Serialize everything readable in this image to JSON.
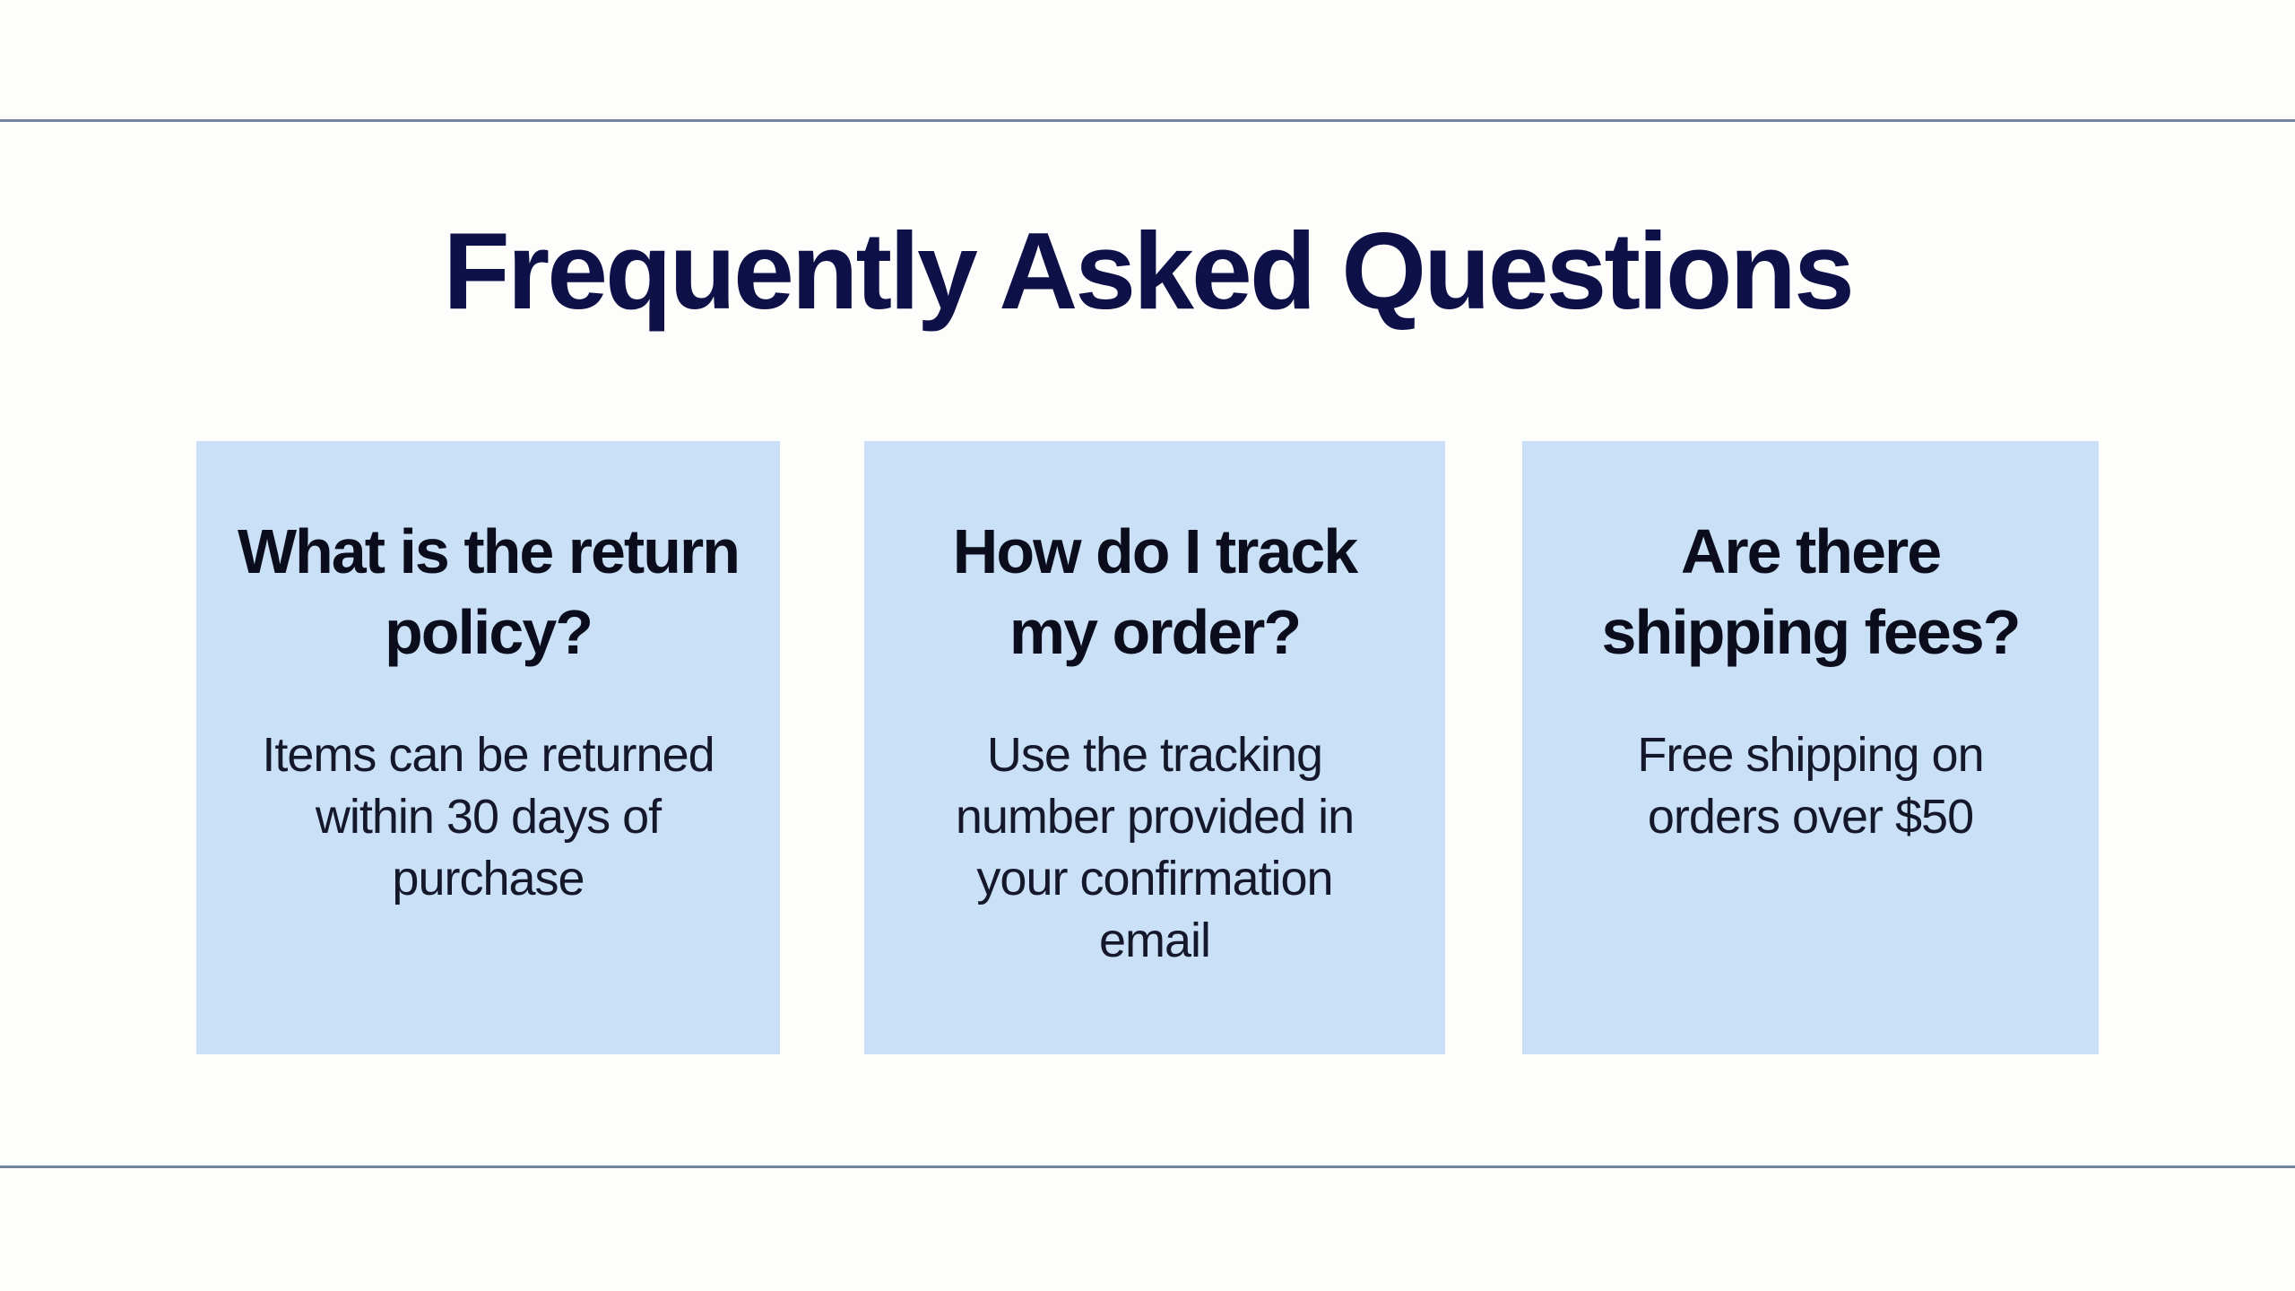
{
  "page": {
    "title": "Frequently Asked Questions",
    "colors": {
      "title": "#0e1147",
      "card_background": "#c9e0f7",
      "rule": "#7585a0"
    }
  },
  "faq": [
    {
      "question": "What is the return policy?",
      "answer": "Items can be returned within 30 days of purchase"
    },
    {
      "question": "How do I track my order?",
      "answer": "Use the tracking number provided in your confirmation email"
    },
    {
      "question": "Are there shipping fees?",
      "answer": "Free shipping on orders over $50"
    }
  ]
}
